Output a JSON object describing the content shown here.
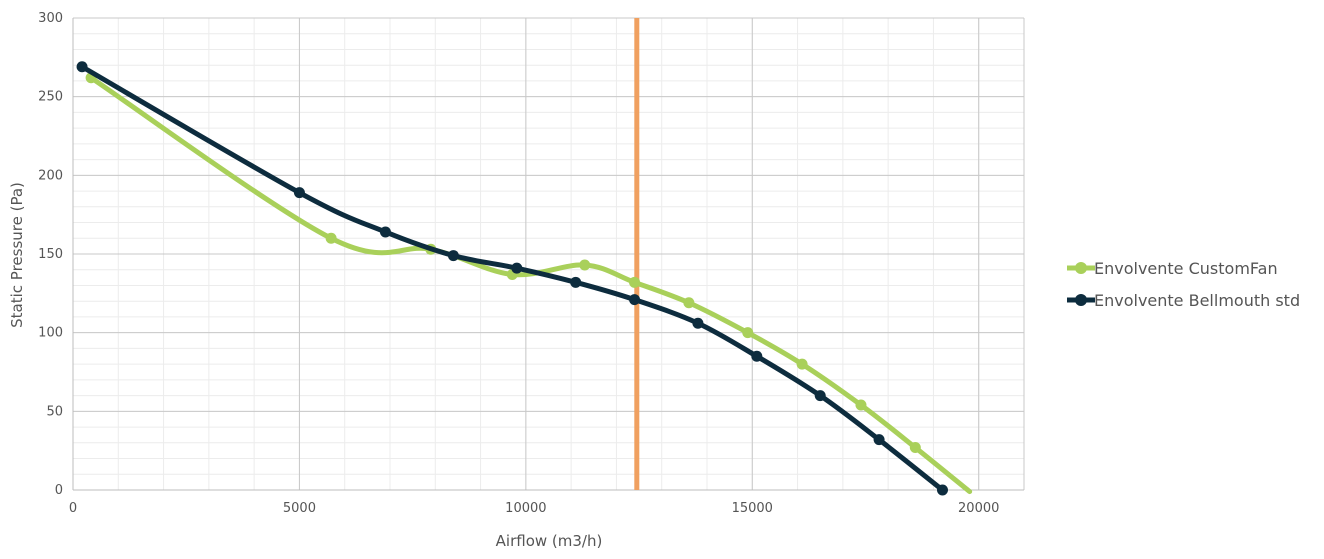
{
  "chart_data": {
    "type": "line",
    "title": "",
    "xlabel": "Airflow (m3/h)",
    "ylabel": "Static Pressure (Pa)",
    "xlim": [
      0,
      21000
    ],
    "ylim": [
      0,
      300
    ],
    "x_ticks": [
      0,
      5000,
      10000,
      15000,
      20000
    ],
    "y_ticks": [
      0,
      50,
      100,
      150,
      200,
      250,
      300
    ],
    "x_minor_step": 1000,
    "y_minor_step": 10,
    "grid": true,
    "legend_position": "right",
    "colors": {
      "grid_major": "#c8c8c8",
      "grid_minor": "#ececec",
      "axis": "#bdbdbd",
      "operating_line": "#f0a060"
    },
    "vertical_reference_line": {
      "x": 12450
    },
    "series": [
      {
        "name": "Envolvente CustomFan",
        "color": "#a9d05a",
        "points": [
          [
            400,
            262
          ],
          [
            5700,
            160
          ],
          [
            7900,
            153
          ],
          [
            9700,
            137
          ],
          [
            11300,
            143
          ],
          [
            12400,
            132
          ],
          [
            13600,
            119
          ],
          [
            14900,
            100
          ],
          [
            16100,
            80
          ],
          [
            17400,
            54
          ],
          [
            18600,
            27
          ],
          [
            19800,
            -1
          ]
        ]
      },
      {
        "name": "Envolvente Bellmouth std",
        "color": "#0d2c3e",
        "points": [
          [
            200,
            269
          ],
          [
            5000,
            189
          ],
          [
            6900,
            164
          ],
          [
            8400,
            149
          ],
          [
            9800,
            141
          ],
          [
            11100,
            132
          ],
          [
            12400,
            121
          ],
          [
            13800,
            106
          ],
          [
            15100,
            85
          ],
          [
            16500,
            60
          ],
          [
            17800,
            32
          ],
          [
            19200,
            0
          ]
        ]
      }
    ]
  }
}
